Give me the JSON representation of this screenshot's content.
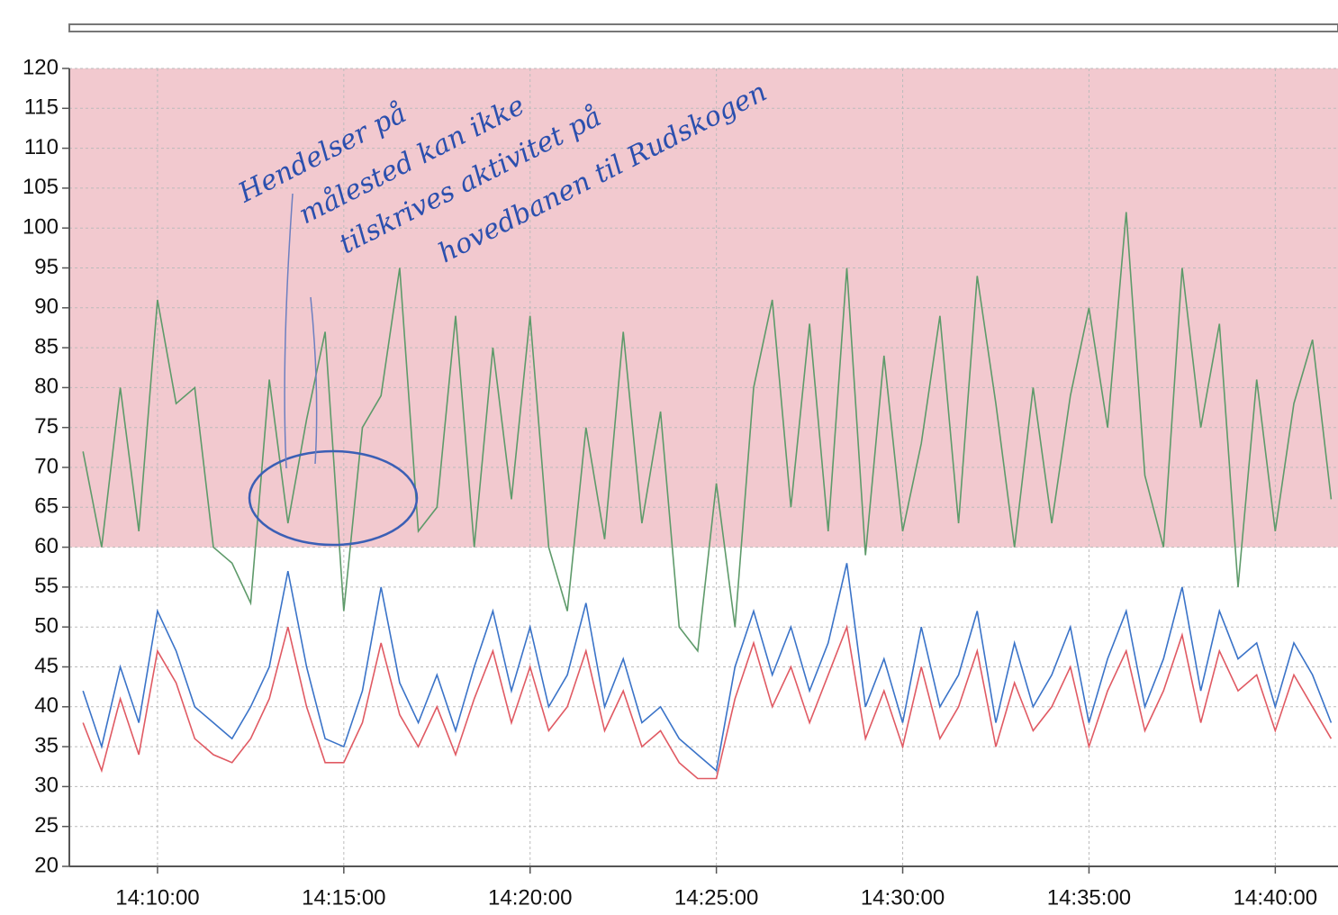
{
  "chart_data": {
    "type": "line",
    "annotation": [
      "Hendelser på",
      "målested kan ikke",
      "tilskrives aktivitet på",
      "hovedbanen til Rudskogen"
    ],
    "x": [
      "14:08:00",
      "14:08:30",
      "14:09:00",
      "14:09:30",
      "14:10:00",
      "14:10:30",
      "14:11:00",
      "14:11:30",
      "14:12:00",
      "14:12:30",
      "14:13:00",
      "14:13:30",
      "14:14:00",
      "14:14:30",
      "14:15:00",
      "14:15:30",
      "14:16:00",
      "14:16:30",
      "14:17:00",
      "14:17:30",
      "14:18:00",
      "14:18:30",
      "14:19:00",
      "14:19:30",
      "14:20:00",
      "14:20:30",
      "14:21:00",
      "14:21:30",
      "14:22:00",
      "14:22:30",
      "14:23:00",
      "14:23:30",
      "14:24:00",
      "14:24:30",
      "14:25:00",
      "14:25:30",
      "14:26:00",
      "14:26:30",
      "14:27:00",
      "14:27:30",
      "14:28:00",
      "14:28:30",
      "14:29:00",
      "14:29:30",
      "14:30:00",
      "14:30:30",
      "14:31:00",
      "14:31:30",
      "14:32:00",
      "14:32:30",
      "14:33:00",
      "14:33:30",
      "14:34:00",
      "14:34:30",
      "14:35:00",
      "14:35:30",
      "14:36:00",
      "14:36:30",
      "14:37:00",
      "14:37:30",
      "14:38:00",
      "14:38:30",
      "14:39:00",
      "14:39:30",
      "14:40:00",
      "14:40:30",
      "14:41:00",
      "14:41:30"
    ],
    "series": [
      {
        "color": "#5e9a6a",
        "values": [
          72,
          60,
          80,
          62,
          91,
          78,
          80,
          60,
          58,
          53,
          81,
          63,
          76,
          87,
          52,
          75,
          79,
          95,
          62,
          65,
          89,
          60,
          85,
          66,
          89,
          60,
          52,
          75,
          61,
          87,
          63,
          77,
          50,
          47,
          68,
          50,
          80,
          91,
          65,
          88,
          62,
          95,
          59,
          84,
          62,
          73,
          89,
          63,
          94,
          78,
          60,
          80,
          63,
          79,
          90,
          75,
          102,
          69,
          60,
          95,
          75,
          88,
          55,
          81,
          62,
          78,
          86,
          66
        ]
      },
      {
        "color": "#3a73c8",
        "values": [
          42,
          35,
          45,
          38,
          52,
          47,
          40,
          38,
          36,
          40,
          45,
          57,
          45,
          36,
          35,
          42,
          55,
          43,
          38,
          44,
          37,
          45,
          52,
          42,
          50,
          40,
          44,
          53,
          40,
          46,
          38,
          40,
          36,
          34,
          32,
          45,
          52,
          44,
          50,
          42,
          48,
          58,
          40,
          46,
          38,
          50,
          40,
          44,
          52,
          38,
          48,
          40,
          44,
          50,
          38,
          46,
          52,
          40,
          46,
          55,
          42,
          52,
          46,
          48,
          40,
          48,
          44,
          38
        ]
      },
      {
        "color": "#e05a63",
        "values": [
          38,
          32,
          41,
          34,
          47,
          43,
          36,
          34,
          33,
          36,
          41,
          50,
          40,
          33,
          33,
          38,
          48,
          39,
          35,
          40,
          34,
          41,
          47,
          38,
          45,
          37,
          40,
          47,
          37,
          42,
          35,
          37,
          33,
          31,
          31,
          41,
          48,
          40,
          45,
          38,
          44,
          50,
          36,
          42,
          35,
          45,
          36,
          40,
          47,
          35,
          43,
          37,
          40,
          45,
          35,
          42,
          47,
          37,
          42,
          49,
          38,
          47,
          42,
          44,
          37,
          44,
          40,
          36
        ]
      }
    ],
    "band": [
      60,
      120
    ],
    "band_color": "#f2c9cf",
    "xlim": [
      "14:07:38",
      "14:41:41"
    ],
    "xticks": [
      "14:10:00",
      "14:15:00",
      "14:20:00",
      "14:25:00",
      "14:30:00",
      "14:35:00",
      "14:40:00"
    ],
    "ylim": [
      20,
      120
    ],
    "yticks": [
      20,
      25,
      30,
      35,
      40,
      45,
      50,
      55,
      60,
      65,
      70,
      75,
      80,
      85,
      90,
      95,
      100,
      105,
      110,
      115,
      120
    ],
    "grid": true
  }
}
